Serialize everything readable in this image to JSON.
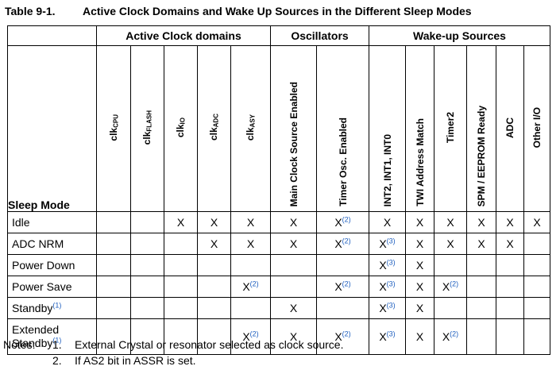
{
  "title": {
    "number": "Table 9-1.",
    "text": "Active Clock Domains and Wake Up Sources in the Different Sleep Modes"
  },
  "groups": {
    "clock": "Active Clock domains",
    "osc": "Oscillators",
    "wake": "Wake-up Sources"
  },
  "row_header": "Sleep Mode",
  "columns": {
    "clk_cpu": {
      "base": "clk",
      "sub": "CPU"
    },
    "clk_flash": {
      "base": "clk",
      "sub": "FLASH"
    },
    "clk_io": {
      "base": "clk",
      "sub": "IO"
    },
    "clk_adc": {
      "base": "clk",
      "sub": "ADC"
    },
    "clk_asy": {
      "base": "clk",
      "sub": "ASY"
    },
    "main_clock": "Main Clock Source Enabled",
    "timer_osc": "Timer Osc. Enabled",
    "int": "INT2, INT1, INT0",
    "twi": "TWI Address Match",
    "timer2": "Timer2",
    "spm": "SPM / EEPROM Ready",
    "adc": "ADC",
    "other_io": "Other I/O"
  },
  "rows": [
    {
      "mode": "Idle",
      "mode_ref": "",
      "cells": [
        {
          "m": "",
          "r": ""
        },
        {
          "m": "",
          "r": ""
        },
        {
          "m": "X",
          "r": ""
        },
        {
          "m": "X",
          "r": ""
        },
        {
          "m": "X",
          "r": ""
        },
        {
          "m": "X",
          "r": ""
        },
        {
          "m": "X",
          "r": "(2)"
        },
        {
          "m": "X",
          "r": ""
        },
        {
          "m": "X",
          "r": ""
        },
        {
          "m": "X",
          "r": ""
        },
        {
          "m": "X",
          "r": ""
        },
        {
          "m": "X",
          "r": ""
        },
        {
          "m": "X",
          "r": ""
        }
      ]
    },
    {
      "mode": "ADC NRM",
      "mode_ref": "",
      "cells": [
        {
          "m": "",
          "r": ""
        },
        {
          "m": "",
          "r": ""
        },
        {
          "m": "",
          "r": ""
        },
        {
          "m": "X",
          "r": ""
        },
        {
          "m": "X",
          "r": ""
        },
        {
          "m": "X",
          "r": ""
        },
        {
          "m": "X",
          "r": "(2)"
        },
        {
          "m": "X",
          "r": "(3)"
        },
        {
          "m": "X",
          "r": ""
        },
        {
          "m": "X",
          "r": ""
        },
        {
          "m": "X",
          "r": ""
        },
        {
          "m": "X",
          "r": ""
        },
        {
          "m": "",
          "r": ""
        }
      ]
    },
    {
      "mode": "Power Down",
      "mode_ref": "",
      "cells": [
        {
          "m": "",
          "r": ""
        },
        {
          "m": "",
          "r": ""
        },
        {
          "m": "",
          "r": ""
        },
        {
          "m": "",
          "r": ""
        },
        {
          "m": "",
          "r": ""
        },
        {
          "m": "",
          "r": ""
        },
        {
          "m": "",
          "r": ""
        },
        {
          "m": "X",
          "r": "(3)"
        },
        {
          "m": "X",
          "r": ""
        },
        {
          "m": "",
          "r": ""
        },
        {
          "m": "",
          "r": ""
        },
        {
          "m": "",
          "r": ""
        },
        {
          "m": "",
          "r": ""
        }
      ]
    },
    {
      "mode": "Power Save",
      "mode_ref": "",
      "cells": [
        {
          "m": "",
          "r": ""
        },
        {
          "m": "",
          "r": ""
        },
        {
          "m": "",
          "r": ""
        },
        {
          "m": "",
          "r": ""
        },
        {
          "m": "X",
          "r": "(2)"
        },
        {
          "m": "",
          "r": ""
        },
        {
          "m": "X",
          "r": "(2)"
        },
        {
          "m": "X",
          "r": "(3)"
        },
        {
          "m": "X",
          "r": ""
        },
        {
          "m": "X",
          "r": "(2)"
        },
        {
          "m": "",
          "r": ""
        },
        {
          "m": "",
          "r": ""
        },
        {
          "m": "",
          "r": ""
        }
      ]
    },
    {
      "mode": "Standby",
      "mode_ref": "(1)",
      "cells": [
        {
          "m": "",
          "r": ""
        },
        {
          "m": "",
          "r": ""
        },
        {
          "m": "",
          "r": ""
        },
        {
          "m": "",
          "r": ""
        },
        {
          "m": "",
          "r": ""
        },
        {
          "m": "X",
          "r": ""
        },
        {
          "m": "",
          "r": ""
        },
        {
          "m": "X",
          "r": "(3)"
        },
        {
          "m": "X",
          "r": ""
        },
        {
          "m": "",
          "r": ""
        },
        {
          "m": "",
          "r": ""
        },
        {
          "m": "",
          "r": ""
        },
        {
          "m": "",
          "r": ""
        }
      ]
    },
    {
      "mode": "Extended",
      "mode2": "Standby",
      "mode_ref": "(1)",
      "cells": [
        {
          "m": "",
          "r": ""
        },
        {
          "m": "",
          "r": ""
        },
        {
          "m": "",
          "r": ""
        },
        {
          "m": "",
          "r": ""
        },
        {
          "m": "X",
          "r": "(2)"
        },
        {
          "m": "X",
          "r": ""
        },
        {
          "m": "X",
          "r": "(2)"
        },
        {
          "m": "X",
          "r": "(3)"
        },
        {
          "m": "X",
          "r": ""
        },
        {
          "m": "X",
          "r": "(2)"
        },
        {
          "m": "",
          "r": ""
        },
        {
          "m": "",
          "r": ""
        },
        {
          "m": "",
          "r": ""
        }
      ]
    }
  ],
  "notes": {
    "label": "Notes:",
    "items": [
      {
        "n": "1.",
        "text": "External Crystal or resonator selected as clock source."
      },
      {
        "n": "2.",
        "text": "If AS2 bit in ASSR is set."
      }
    ]
  }
}
